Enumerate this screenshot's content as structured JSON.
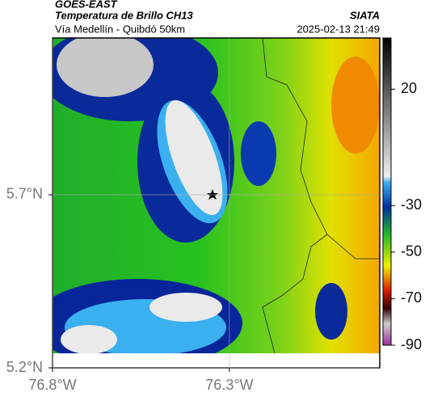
{
  "header": {
    "source": "GOES-EAST",
    "product": "Temperatura de Brillo CH13",
    "credit": "SIATA",
    "route": "Vía Medellín - Quibdó 50km",
    "timestamp": "2025-02-13 21:49"
  },
  "map": {
    "xlim": [
      -76.8,
      -75.875
    ],
    "ylim": [
      5.2,
      6.153
    ],
    "xticks": [
      {
        "value": -76.8,
        "label": "76.8°W"
      },
      {
        "value": -76.3,
        "label": "76.3°W"
      }
    ],
    "yticks": [
      {
        "value": 5.2,
        "label": "5.2°N"
      },
      {
        "value": 5.7,
        "label": "5.7°N"
      }
    ],
    "grid": true
  },
  "colorbar": {
    "lim": [
      42,
      -90
    ],
    "ticks": [
      20,
      -30,
      -50,
      -70,
      -90
    ]
  }
}
